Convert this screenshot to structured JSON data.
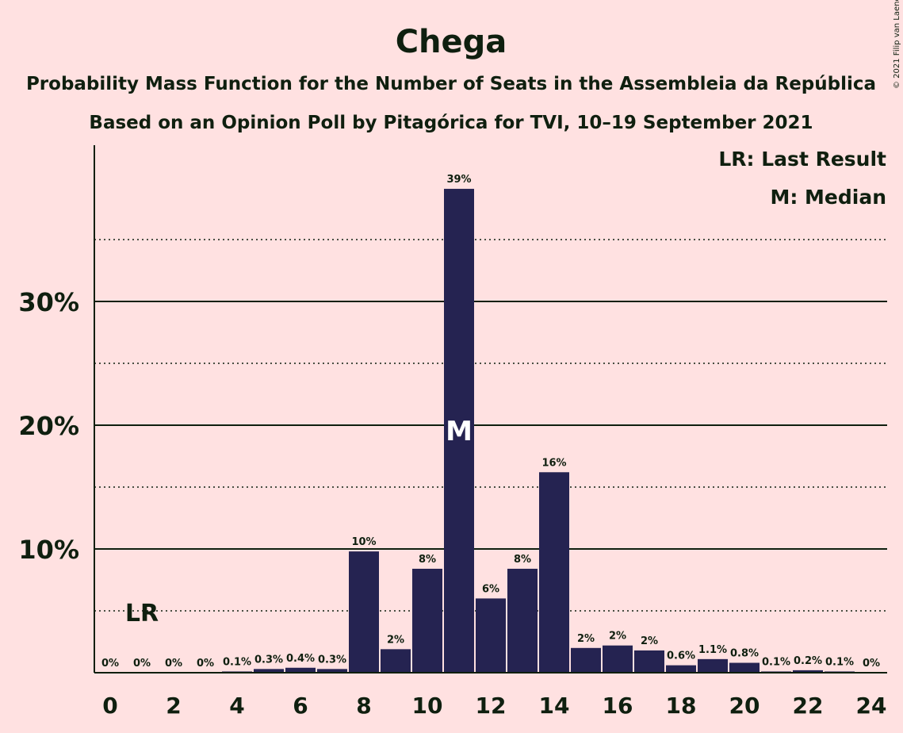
{
  "chart_data": {
    "type": "bar",
    "title": "Chega",
    "subtitle": "Probability Mass Function for the Number of Seats in the Assembleia da República",
    "subtitle2": "Based on an Opinion Poll by Pitagórica for TVI, 10–19 September 2021",
    "copyright": "© 2021 Filip van Laenen",
    "x": [
      0,
      1,
      2,
      3,
      4,
      5,
      6,
      7,
      8,
      9,
      10,
      11,
      12,
      13,
      14,
      15,
      16,
      17,
      18,
      19,
      20,
      21,
      22,
      23,
      24
    ],
    "values": [
      0,
      0,
      0,
      0,
      0.1,
      0.3,
      0.4,
      0.3,
      9.8,
      1.9,
      8.4,
      39.1,
      6.0,
      8.4,
      16.2,
      2.0,
      2.2,
      1.8,
      0.6,
      1.1,
      0.8,
      0.1,
      0.2,
      0.1,
      0
    ],
    "labels": [
      "0%",
      "0%",
      "0%",
      "0%",
      "0.1%",
      "0.3%",
      "0.4%",
      "0.3%",
      "10%",
      "2%",
      "8%",
      "39%",
      "6%",
      "8%",
      "16%",
      "2%",
      "2%",
      "2%",
      "0.6%",
      "1.1%",
      "0.8%",
      "0.1%",
      "0.2%",
      "0.1%",
      "0%"
    ],
    "xticks": [
      "0",
      "2",
      "4",
      "6",
      "8",
      "10",
      "12",
      "14",
      "16",
      "18",
      "20",
      "22",
      "24"
    ],
    "xtick_values": [
      0,
      2,
      4,
      6,
      8,
      10,
      12,
      14,
      16,
      18,
      20,
      22,
      24
    ],
    "yticks": [
      "10%",
      "20%",
      "30%"
    ],
    "ytick_values": [
      10,
      20,
      30
    ],
    "ylim": [
      0,
      42
    ],
    "grid": "solid major lines at 10% steps, dotted lines at 5% steps",
    "last_result": {
      "x": 1,
      "label": "LR"
    },
    "median": {
      "x": 11,
      "label": "M"
    },
    "legend": [
      "LR: Last Result",
      "M: Median"
    ],
    "legend_position": "top-right",
    "colors": {
      "bar": "#252351",
      "background": "#FFE1E1",
      "text": "#0F1F0F"
    }
  }
}
